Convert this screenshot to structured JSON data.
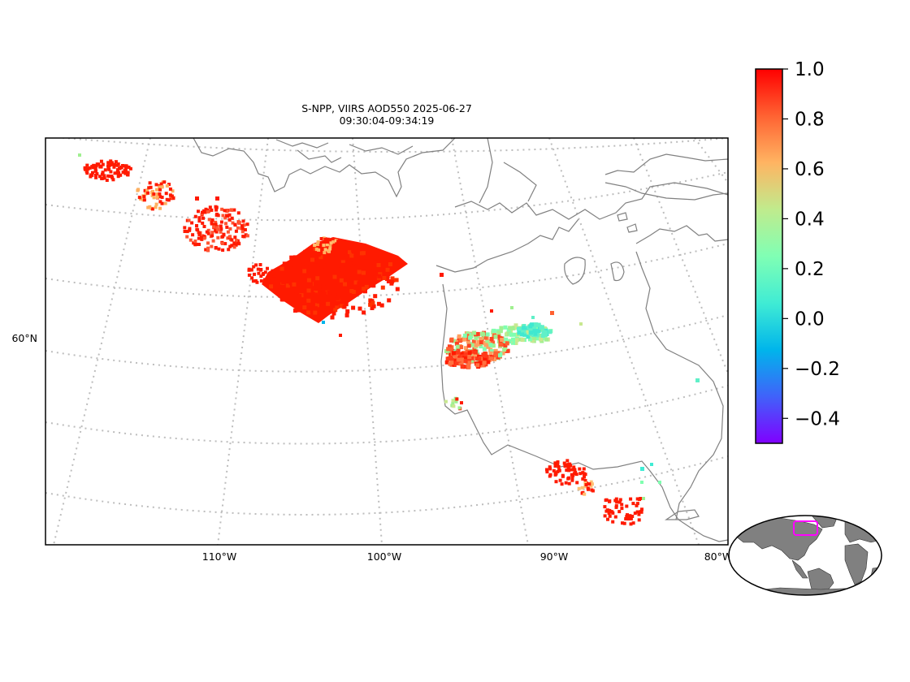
{
  "title": {
    "line1": "S-NPP, VIIRS AOD550 2025-06-27",
    "line2": "09:30:04-09:34:19"
  },
  "map": {
    "projection": "lambert-conformal",
    "lon_ticks": [
      "110°W",
      "100°W",
      "90°W",
      "80°W"
    ],
    "lat_ticks": [
      "60°N"
    ],
    "gridlines": true,
    "coastline_color": "#808080"
  },
  "colorbar": {
    "colormap": "rainbow",
    "vmin": -0.5,
    "vmax": 1.0,
    "tick_values": [
      1.0,
      0.8,
      0.6,
      0.4,
      0.2,
      0.0,
      -0.2,
      -0.4
    ],
    "tick_labels": [
      "1.0",
      "0.8",
      "0.6",
      "0.4",
      "0.2",
      "0.0",
      "−0.2",
      "−0.4"
    ]
  },
  "inset": {
    "type": "globe-locator",
    "land_color": "#808080",
    "highlight_color": "#ff00ff"
  },
  "chart_data": {
    "type": "map",
    "variable": "AOD550",
    "clusters": [
      {
        "name": "northwest-plume",
        "aod": 1.0
      },
      {
        "name": "central-plume",
        "aod": 1.0
      },
      {
        "name": "hudson-bay-mixed",
        "aod_range": [
          0.1,
          1.0
        ]
      },
      {
        "name": "south-east-cluster",
        "aod": 1.0
      }
    ]
  }
}
